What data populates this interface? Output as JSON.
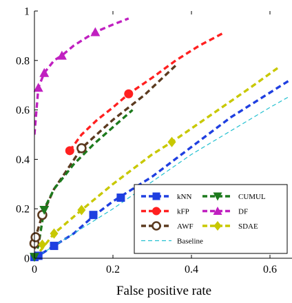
{
  "chart_data": {
    "type": "line",
    "title": "",
    "xlabel": "False positive rate",
    "ylabel": "",
    "xlim": [
      0,
      0.65
    ],
    "ylim": [
      0,
      1
    ],
    "xticks": [
      0,
      0.2,
      0.4,
      0.6
    ],
    "xtick_labels": [
      "0",
      "0.2",
      "0.4",
      "0.6"
    ],
    "yticks": [
      0,
      0.2,
      0.4,
      0.6,
      0.8,
      1
    ],
    "ytick_labels": [
      "0",
      "0.2",
      "0.4",
      "0.6",
      "0.8",
      "1"
    ],
    "grid": false,
    "legend_position": "bottom-right",
    "series": [
      {
        "name": "kNN",
        "color": "#1f3fe0",
        "marker": "square",
        "dash": "dash",
        "line": [
          [
            0,
            0
          ],
          [
            0.05,
            0.05
          ],
          [
            0.1,
            0.1
          ],
          [
            0.15,
            0.17
          ],
          [
            0.2,
            0.23
          ],
          [
            0.3,
            0.33
          ],
          [
            0.4,
            0.45
          ],
          [
            0.5,
            0.57
          ],
          [
            0.6,
            0.67
          ],
          [
            0.65,
            0.72
          ]
        ],
        "points": [
          [
            0.0,
            0.005
          ],
          [
            0.01,
            0.01
          ],
          [
            0.05,
            0.05
          ],
          [
            0.15,
            0.175
          ],
          [
            0.22,
            0.245
          ]
        ]
      },
      {
        "name": "kFP",
        "color": "#ff2020",
        "marker": "circle",
        "dash": "dash",
        "line": [
          [
            0.09,
            0.435
          ],
          [
            0.12,
            0.5
          ],
          [
            0.16,
            0.56
          ],
          [
            0.2,
            0.61
          ],
          [
            0.24,
            0.665
          ],
          [
            0.3,
            0.73
          ],
          [
            0.36,
            0.8
          ],
          [
            0.42,
            0.86
          ],
          [
            0.48,
            0.91
          ]
        ],
        "points": [
          [
            0.09,
            0.435
          ],
          [
            0.24,
            0.665
          ]
        ]
      },
      {
        "name": "AWF",
        "color": "#5b3a1f",
        "marker": "open-circle",
        "dash": "dash",
        "line": [
          [
            0.0,
            0.0
          ],
          [
            0.0,
            0.06
          ],
          [
            0.003,
            0.085
          ],
          [
            0.02,
            0.175
          ],
          [
            0.05,
            0.28
          ],
          [
            0.08,
            0.35
          ],
          [
            0.12,
            0.445
          ],
          [
            0.2,
            0.56
          ],
          [
            0.28,
            0.66
          ],
          [
            0.36,
            0.78
          ]
        ],
        "points": [
          [
            0.0,
            0.06
          ],
          [
            0.003,
            0.085
          ],
          [
            0.02,
            0.175
          ],
          [
            0.12,
            0.445
          ]
        ]
      },
      {
        "name": "CUMUL",
        "color": "#1d7a1d",
        "marker": "triangle-down",
        "dash": "dash",
        "line": [
          [
            0.0,
            0.005
          ],
          [
            0.01,
            0.05
          ],
          [
            0.025,
            0.2
          ],
          [
            0.05,
            0.28
          ],
          [
            0.1,
            0.38
          ],
          [
            0.15,
            0.46
          ],
          [
            0.2,
            0.53
          ],
          [
            0.25,
            0.6
          ]
        ],
        "points": [
          [
            0.0,
            0.005
          ],
          [
            0.025,
            0.195
          ]
        ]
      },
      {
        "name": "DF",
        "color": "#c020c0",
        "marker": "triangle-up",
        "dash": "dash",
        "line": [
          [
            0.0,
            0.5
          ],
          [
            0.01,
            0.69
          ],
          [
            0.025,
            0.75
          ],
          [
            0.05,
            0.8
          ],
          [
            0.07,
            0.82
          ],
          [
            0.1,
            0.86
          ],
          [
            0.155,
            0.915
          ],
          [
            0.2,
            0.945
          ],
          [
            0.24,
            0.97
          ]
        ],
        "points": [
          [
            0.01,
            0.69
          ],
          [
            0.025,
            0.75
          ],
          [
            0.07,
            0.82
          ],
          [
            0.155,
            0.915
          ]
        ]
      },
      {
        "name": "SDAE",
        "color": "#c8c800",
        "marker": "diamond",
        "dash": "dash",
        "line": [
          [
            0.0,
            0.0
          ],
          [
            0.03,
            0.06
          ],
          [
            0.05,
            0.1
          ],
          [
            0.12,
            0.195
          ],
          [
            0.2,
            0.3
          ],
          [
            0.3,
            0.42
          ],
          [
            0.35,
            0.47
          ],
          [
            0.45,
            0.58
          ],
          [
            0.55,
            0.69
          ],
          [
            0.62,
            0.77
          ]
        ],
        "points": [
          [
            0.02,
            0.055
          ],
          [
            0.05,
            0.1
          ],
          [
            0.12,
            0.195
          ],
          [
            0.35,
            0.47
          ]
        ]
      },
      {
        "name": "Baseline",
        "color": "#22c0d0",
        "marker": "none",
        "dash": "fine",
        "line": [
          [
            0,
            0
          ],
          [
            0.2,
            0.2
          ],
          [
            0.4,
            0.42
          ],
          [
            0.6,
            0.61
          ],
          [
            0.65,
            0.655
          ]
        ],
        "points": []
      }
    ]
  }
}
